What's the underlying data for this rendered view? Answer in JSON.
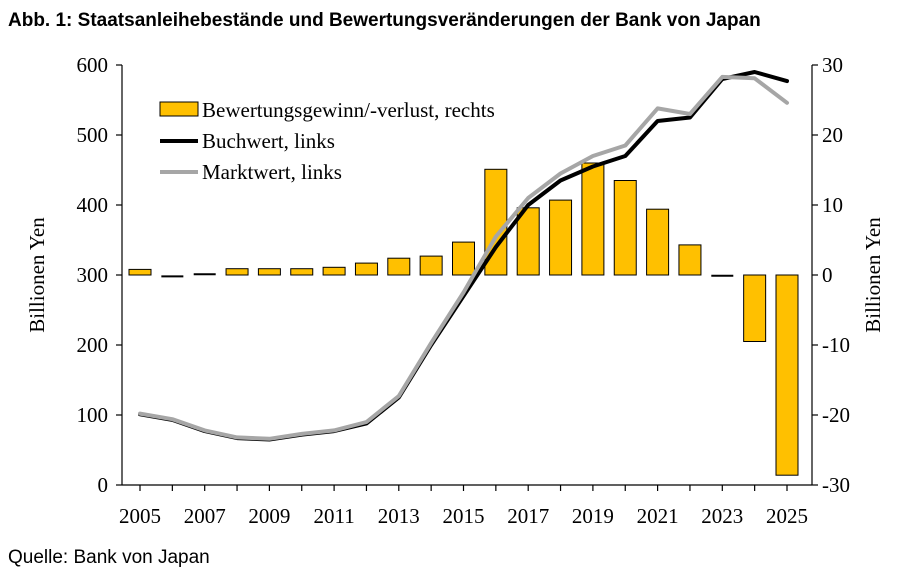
{
  "figure_title": "Abb. 1: Staatsanleihebestände und Bewertungsveränderungen der Bank von Japan",
  "source": "Quelle: Bank von Japan",
  "colors": {
    "bars": "#FFC000",
    "bar_outline": "#000000",
    "book": "#000000",
    "market": "#A6A6A6"
  },
  "chart_data": {
    "type": "bar+line",
    "title": "Abb. 1: Staatsanleihebestände und Bewertungsveränderungen der Bank von Japan",
    "x": [
      2005,
      2006,
      2007,
      2008,
      2009,
      2010,
      2011,
      2012,
      2013,
      2014,
      2015,
      2016,
      2017,
      2018,
      2019,
      2020,
      2021,
      2022,
      2023,
      2024,
      2025
    ],
    "x_tick_labels": [
      "2005",
      "2007",
      "2009",
      "2011",
      "2013",
      "2015",
      "2017",
      "2019",
      "2021",
      "2023",
      "2025"
    ],
    "ylabel_left": "Billionen Yen",
    "ylabel_right": "Billionen Yen",
    "ylim_left": [
      0,
      600
    ],
    "ylim_right": [
      -30,
      30
    ],
    "yticks_left": [
      "0",
      "100",
      "200",
      "300",
      "400",
      "500",
      "600"
    ],
    "yticks_right": [
      "-30",
      "-20",
      "-10",
      "0",
      "10",
      "20",
      "30"
    ],
    "grid": false,
    "legend_position": "top-left",
    "series": [
      {
        "name": "Bewertungsgewinn/-verlust, rechts",
        "type": "bar",
        "axis": "right",
        "values": [
          0.8,
          -0.2,
          0.1,
          0.9,
          0.9,
          0.9,
          1.1,
          1.7,
          2.4,
          2.7,
          4.7,
          15.1,
          9.6,
          10.7,
          16.0,
          13.5,
          9.4,
          4.3,
          -0.1,
          -9.5,
          -28.6
        ]
      },
      {
        "name": "Buchwert, links",
        "type": "line",
        "axis": "left",
        "values": [
          101,
          93,
          77,
          67,
          65,
          72,
          77,
          88,
          125,
          200,
          270,
          340,
          400,
          435,
          455,
          470,
          520,
          525,
          580,
          590,
          577
        ]
      },
      {
        "name": "Marktwert, links",
        "type": "line",
        "axis": "left",
        "values": [
          102,
          94,
          78,
          68,
          66,
          73,
          78,
          90,
          127,
          203,
          275,
          355,
          410,
          445,
          470,
          485,
          538,
          530,
          583,
          581,
          546
        ]
      }
    ]
  }
}
